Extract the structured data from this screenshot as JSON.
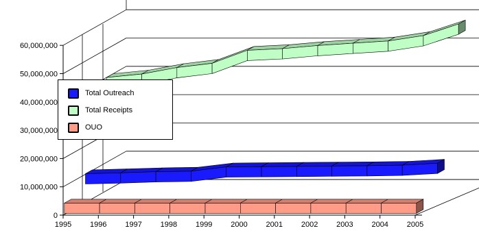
{
  "chart_data": {
    "type": "area",
    "style": "3d-ribbon",
    "title": "",
    "xlabel": "",
    "ylabel": "",
    "categories": [
      "1995",
      "1996",
      "1997",
      "1998",
      "1999",
      "2000",
      "2001",
      "2002",
      "2003",
      "2004",
      "2005"
    ],
    "ylim": [
      0,
      60000000
    ],
    "ytick_labels": [
      "0",
      "10,000,000",
      "20,000,000",
      "30,000,000",
      "40,000,000",
      "50,000,000",
      "60,000,000"
    ],
    "series": [
      {
        "name": "Total Outreach",
        "color": "#1a1aff",
        "values": [
          10200000,
          10500000,
          10900000,
          11100000,
          12600000,
          12700000,
          12800000,
          12900000,
          13000000,
          13200000,
          13900000
        ]
      },
      {
        "name": "Total Receipts",
        "color": "#bfffc6",
        "values": [
          40000000,
          41200000,
          43500000,
          45000000,
          49600000,
          50200000,
          51300000,
          52100000,
          52900000,
          54800000,
          58900000
        ]
      },
      {
        "name": "OUO",
        "color": "#ff9b87",
        "values": [
          4000000,
          4000000,
          4000000,
          4000000,
          4000000,
          4000000,
          4000000,
          4000000,
          4000000,
          4000000,
          4000000
        ]
      }
    ],
    "grid": true,
    "legend_position": "left"
  }
}
